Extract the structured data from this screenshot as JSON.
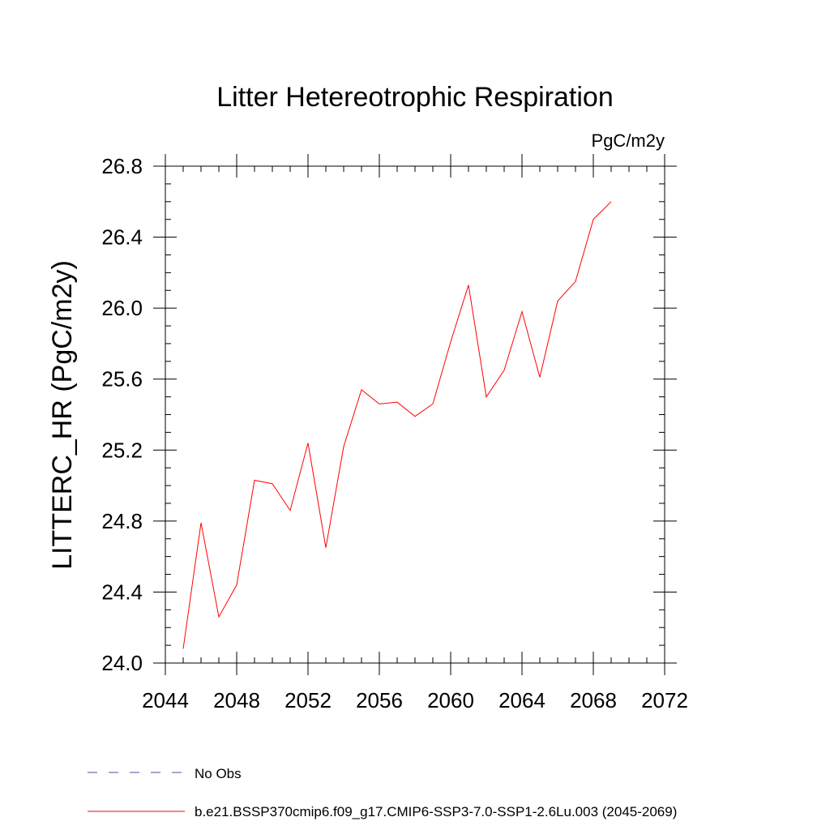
{
  "chart_data": {
    "type": "line",
    "title": "Litter Hetereotrophic Respiration",
    "units_label": "PgC/m2y",
    "ylabel": "LITTERC_HR  (PgC/m2y)",
    "xlabel": "",
    "xlim": [
      2044,
      2072
    ],
    "ylim": [
      24.0,
      26.8
    ],
    "x_ticks": [
      2044,
      2048,
      2052,
      2056,
      2060,
      2064,
      2068,
      2072
    ],
    "y_ticks": [
      "24.0",
      "24.4",
      "24.8",
      "25.2",
      "25.6",
      "26.0",
      "26.4",
      "26.8"
    ],
    "grid": false,
    "legend_position": "bottom-left",
    "series": [
      {
        "name": "b.e21.BSSP370cmip6.f09_g17.CMIP6-SSP3-7.0-SSP1-2.6Lu.003 (2045-2069)",
        "color": "#ff0000",
        "style": "solid",
        "x": [
          2045,
          2046,
          2047,
          2048,
          2049,
          2050,
          2051,
          2052,
          2053,
          2054,
          2055,
          2056,
          2057,
          2058,
          2059,
          2060,
          2061,
          2062,
          2063,
          2064,
          2065,
          2066,
          2067,
          2068,
          2069
        ],
        "y": [
          24.08,
          24.79,
          24.26,
          24.44,
          25.03,
          25.01,
          24.86,
          25.24,
          24.65,
          25.22,
          25.54,
          25.46,
          25.47,
          25.39,
          25.46,
          25.81,
          26.13,
          25.5,
          25.65,
          25.98,
          25.61,
          26.04,
          26.15,
          26.5,
          26.6
        ]
      }
    ],
    "legend": [
      {
        "label": "No Obs",
        "color": "#5a4a9a",
        "style": "dashed"
      },
      {
        "label": "b.e21.BSSP370cmip6.f09_g17.CMIP6-SSP3-7.0-SSP1-2.6Lu.003 (2045-2069)",
        "color": "#ff0000",
        "style": "solid"
      }
    ]
  }
}
